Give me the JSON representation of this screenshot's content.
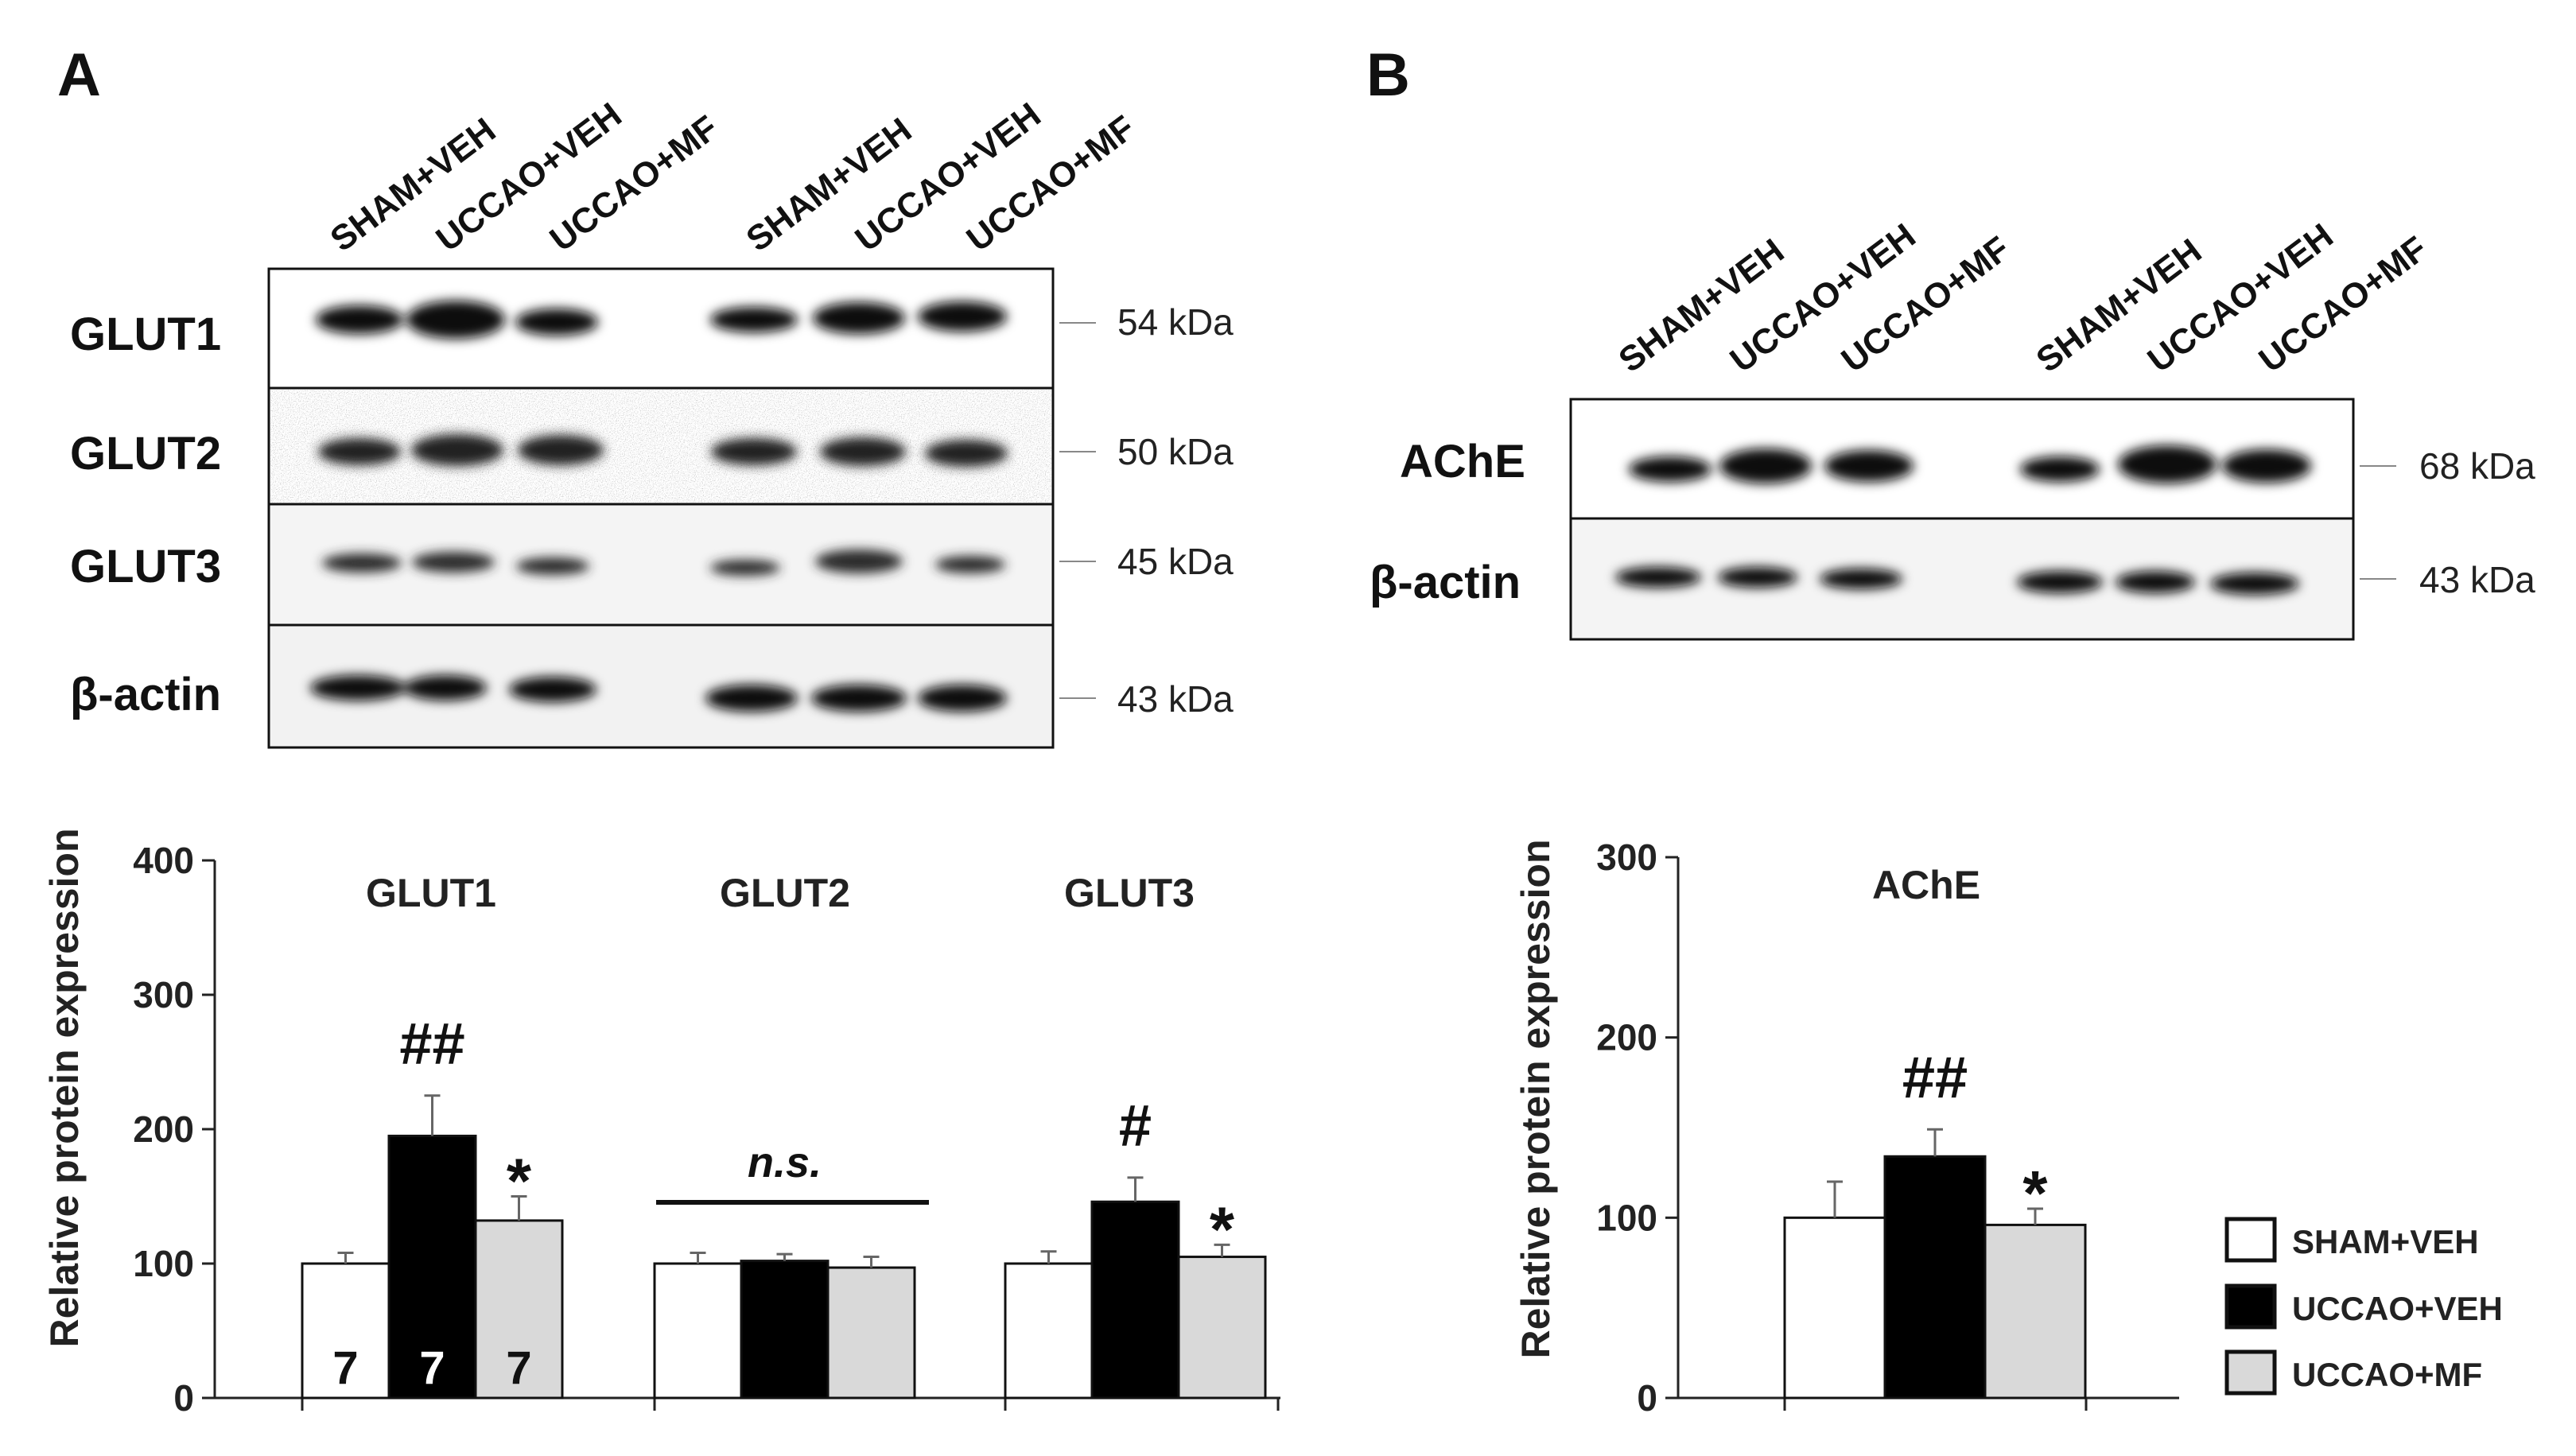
{
  "panel_a": {
    "letter": "A",
    "lanes": [
      "SHAM+VEH",
      "UCCAO+VEH",
      "UCCAO+MF",
      "SHAM+VEH",
      "UCCAO+VEH",
      "UCCAO+MF"
    ],
    "blots": [
      {
        "label": "GLUT1",
        "mw": "54 kDa"
      },
      {
        "label": "GLUT2",
        "mw": "50 kDa"
      },
      {
        "label": "GLUT3",
        "mw": "45 kDa"
      },
      {
        "label": "β-actin",
        "mw": "43 kDa"
      }
    ]
  },
  "panel_b": {
    "letter": "B",
    "lanes": [
      "SHAM+VEH",
      "UCCAO+VEH",
      "UCCAO+MF",
      "SHAM+VEH",
      "UCCAO+VEH",
      "UCCAO+MF"
    ],
    "blots": [
      {
        "label": "AChE",
        "mw": "68 kDa"
      },
      {
        "label": "β-actin",
        "mw": "43 kDa"
      }
    ]
  },
  "legend": {
    "items": [
      {
        "label": "SHAM+VEH",
        "color": "#ffffff"
      },
      {
        "label": "UCCAO+VEH",
        "color": "#000000"
      },
      {
        "label": "UCCAO+MF",
        "color": "#d9d9d9"
      }
    ]
  },
  "chart_data": [
    {
      "type": "bar",
      "ylabel": "Relative protein expression",
      "ylim": [
        0,
        400
      ],
      "yticks": [
        0,
        100,
        200,
        300,
        400
      ],
      "categories": [
        "GLUT1",
        "GLUT2",
        "GLUT3"
      ],
      "series": [
        {
          "name": "SHAM+VEH",
          "color": "#ffffff",
          "values": [
            100,
            100,
            100
          ],
          "errors": [
            8,
            8,
            9
          ]
        },
        {
          "name": "UCCAO+VEH",
          "color": "#000000",
          "values": [
            195,
            102,
            146
          ],
          "errors": [
            30,
            5,
            18
          ]
        },
        {
          "name": "UCCAO+MF",
          "color": "#d9d9d9",
          "values": [
            132,
            97,
            105
          ],
          "errors": [
            18,
            8,
            9
          ]
        }
      ],
      "n_labels": [
        "7",
        "7",
        "7"
      ],
      "annotations": [
        {
          "text": "##",
          "category": 0,
          "series": 1
        },
        {
          "text": "*",
          "category": 0,
          "series": 2
        },
        {
          "text": "n.s.",
          "category": 1,
          "series": 1
        },
        {
          "text": "#",
          "category": 2,
          "series": 1
        },
        {
          "text": "*",
          "category": 2,
          "series": 2
        }
      ]
    },
    {
      "type": "bar",
      "ylabel": "Relative protein expression",
      "ylim": [
        0,
        300
      ],
      "yticks": [
        0,
        100,
        200,
        300
      ],
      "categories": [
        "AChE"
      ],
      "series": [
        {
          "name": "SHAM+VEH",
          "color": "#ffffff",
          "values": [
            100
          ],
          "errors": [
            20
          ]
        },
        {
          "name": "UCCAO+VEH",
          "color": "#000000",
          "values": [
            134
          ],
          "errors": [
            15
          ]
        },
        {
          "name": "UCCAO+MF",
          "color": "#d9d9d9",
          "values": [
            96
          ],
          "errors": [
            9
          ]
        }
      ],
      "annotations": [
        {
          "text": "##",
          "category": 0,
          "series": 1
        },
        {
          "text": "*",
          "category": 0,
          "series": 2
        }
      ]
    }
  ]
}
